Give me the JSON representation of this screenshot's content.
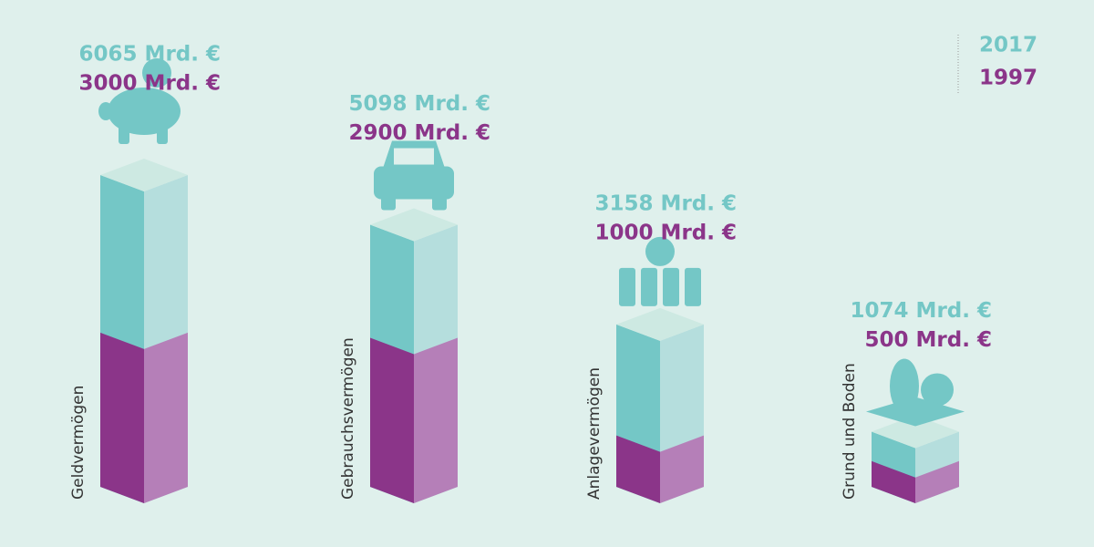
{
  "chart_data": {
    "type": "iso-bar",
    "categories": [
      "Geldvermögen",
      "Gebrauchsvermögen",
      "Anlagevermögen",
      "Grund und Boden"
    ],
    "series": [
      {
        "name": "2017",
        "color": "#74c7c6",
        "values": [
          6065,
          5098,
          3158,
          1074
        ],
        "value_labels": [
          "6065 Mrd. €",
          "5098 Mrd. €",
          "3158 Mrd. €",
          "1074 Mrd. €"
        ]
      },
      {
        "name": "1997",
        "color": "#8b3589",
        "values": [
          3000,
          2900,
          1000,
          500
        ],
        "value_labels": [
          "3000 Mrd. €",
          "2900 Mrd. €",
          "1000 Mrd. €",
          "500 Mrd. €"
        ]
      }
    ]
  }
}
